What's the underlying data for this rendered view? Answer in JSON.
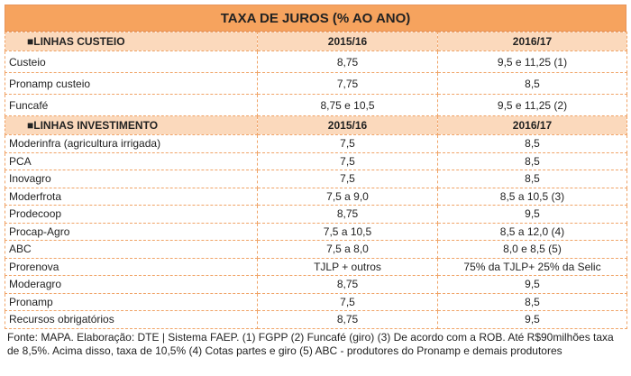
{
  "title": "TAXA DE JUROS (% AO ANO)",
  "sections": [
    {
      "header": [
        "■LINHAS CUSTEIO",
        "2015/16",
        "2016/17"
      ],
      "rows": [
        [
          "Custeio",
          "8,75",
          "9,5 e 11,25 (1)"
        ],
        [
          "Pronamp custeio",
          "7,75",
          "8,5"
        ],
        [
          "Funcafé",
          "8,75 e 10,5",
          "9,5 e 11,25 (2)"
        ]
      ]
    },
    {
      "header": [
        "■LINHAS INVESTIMENTO",
        "2015/16",
        "2016/17"
      ],
      "rows": [
        [
          "Moderinfra (agricultura irrigada)",
          "7,5",
          "8,5"
        ],
        [
          "PCA",
          "7,5",
          "8,5"
        ],
        [
          "Inovagro",
          "7,5",
          "8,5"
        ],
        [
          "Moderfrota",
          "7,5 a 9,0",
          "8,5 a 10,5 (3)"
        ],
        [
          "Prodecoop",
          "8,75",
          "9,5"
        ],
        [
          "Procap-Agro",
          "7,5 a 10,5",
          "8,5 a 12,0 (4)"
        ],
        [
          "ABC",
          "7,5 a 8,0",
          "8,0 e 8,5 (5)"
        ],
        [
          "Prorenova",
          "TJLP + outros",
          "75% da TJLP+ 25% da Selic"
        ],
        [
          "Moderagro",
          "8,75",
          "9,5"
        ],
        [
          "Pronamp",
          "7,5",
          "8,5"
        ],
        [
          "Recursos obrigatórios",
          "8,75",
          "9,5"
        ]
      ]
    }
  ],
  "footnote": "Fonte: MAPA. Elaboração: DTE | Sistema FAEP. (1) FGPP (2) Funcafé (giro) (3) De acordo com a ROB. Até R$90milhões taxa de 8,5%. Acima disso, taxa de 10,5% (4) Cotas partes e giro (5) ABC - produtores do Pronamp e demais produtores"
}
